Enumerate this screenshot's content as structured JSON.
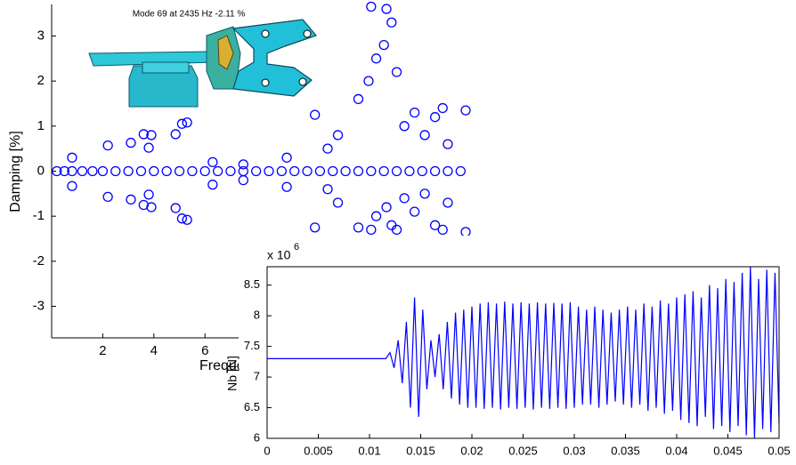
{
  "chart_data": [
    {
      "type": "scatter",
      "annotation": "Mode 69 at 2435 Hz -2.11 %",
      "x_label": "Frequency [kHz]",
      "y_label": "Damping [%]",
      "color": "#0000ff",
      "xlim": [
        0,
        17
      ],
      "ylim": [
        -3.7,
        3.7
      ],
      "xticks": [
        2,
        4,
        6
      ],
      "yticks": [
        -3,
        -2,
        -1,
        0,
        1,
        2,
        3
      ],
      "x": [
        0.2,
        0.5,
        0.8,
        1.2,
        1.6,
        2.0,
        2.5,
        3.0,
        3.5,
        4.0,
        4.5,
        5.0,
        5.5,
        6.0,
        6.5,
        7.0,
        7.5,
        8.0,
        8.5,
        9.0,
        9.5,
        10.0,
        10.5,
        11,
        11.5,
        12,
        12.5,
        13,
        13.5,
        14,
        14.5,
        15,
        15.5,
        16,
        0.8,
        0.8,
        2.2,
        2.2,
        3.1,
        3.1,
        3.6,
        3.6,
        3.8,
        3.8,
        3.9,
        3.9,
        4.85,
        4.85,
        5.1,
        5.1,
        5.3,
        5.3,
        6.3,
        6.3,
        7.5,
        7.5,
        9.2,
        9.2,
        10.3,
        10.3,
        10.8,
        10.8,
        11.2,
        11.2,
        12,
        12,
        12.5,
        12.5,
        12.7,
        12.7,
        13.1,
        13.1,
        13.3,
        13.3,
        13.5,
        13.5,
        13.8,
        13.8,
        14.2,
        14.2,
        14.6,
        14.6,
        15.0,
        15.0,
        15.3,
        15.3,
        15.5,
        15.5,
        16.2,
        16.2,
        12.4,
        13.0
      ],
      "values": [
        0,
        0,
        0,
        0,
        0,
        0,
        0,
        0,
        0,
        0,
        0,
        0,
        0,
        0,
        0,
        0,
        0,
        0,
        0,
        0,
        0,
        0,
        0,
        0,
        0,
        0,
        0,
        0,
        0,
        0,
        0,
        0,
        0,
        0,
        0.3,
        -0.33,
        0.57,
        -0.57,
        0.63,
        -0.63,
        0.82,
        -0.75,
        0.52,
        -0.52,
        0.8,
        -0.8,
        0.82,
        -0.82,
        1.05,
        -1.05,
        1.08,
        -1.08,
        0.2,
        -0.3,
        0.15,
        -0.2,
        0.3,
        -0.35,
        1.25,
        -1.25,
        0.5,
        -0.4,
        0.8,
        -0.7,
        1.6,
        -1.25,
        3.65,
        -1.3,
        2.5,
        -1.0,
        3.6,
        -0.8,
        3.3,
        -1.2,
        2.2,
        -1.3,
        1.0,
        -0.6,
        1.3,
        -0.9,
        0.8,
        -0.5,
        1.2,
        -1.2,
        1.4,
        -1.3,
        0.6,
        -0.7,
        1.35,
        -1.35,
        2.0,
        2.8
      ]
    },
    {
      "type": "line",
      "y_label": "Nb [N]",
      "y_multiplier": "x 10",
      "y_exponent": "6",
      "color": "#0000ff",
      "xlim": [
        0,
        0.05
      ],
      "ylim": [
        6,
        8.8
      ],
      "xticks": [
        0,
        0.005,
        0.01,
        0.015,
        0.02,
        0.025,
        0.03,
        0.035,
        0.04,
        0.045,
        0.05
      ],
      "yticks": [
        6,
        6.5,
        7,
        7.5,
        8,
        8.5
      ],
      "x": [
        0,
        0.0116,
        0.012,
        0.0124,
        0.0128,
        0.0132,
        0.0136,
        0.014,
        0.0144,
        0.0148,
        0.0152,
        0.0156,
        0.016,
        0.0164,
        0.0168,
        0.0172,
        0.0176,
        0.018,
        0.0184,
        0.0188,
        0.0192,
        0.0196,
        0.02,
        0.0204,
        0.0208,
        0.0212,
        0.0216,
        0.022,
        0.0224,
        0.0228,
        0.0232,
        0.0236,
        0.024,
        0.0244,
        0.0248,
        0.0252,
        0.0256,
        0.026,
        0.0264,
        0.0268,
        0.0272,
        0.0276,
        0.028,
        0.0284,
        0.0288,
        0.0292,
        0.0296,
        0.03,
        0.0304,
        0.0308,
        0.0312,
        0.0316,
        0.032,
        0.0324,
        0.0328,
        0.0332,
        0.0336,
        0.034,
        0.0344,
        0.0348,
        0.0352,
        0.0356,
        0.036,
        0.0364,
        0.0368,
        0.0372,
        0.0376,
        0.038,
        0.0384,
        0.0388,
        0.0392,
        0.0396,
        0.04,
        0.0404,
        0.0408,
        0.0412,
        0.0416,
        0.042,
        0.0424,
        0.0428,
        0.0432,
        0.0436,
        0.044,
        0.0444,
        0.0448,
        0.0452,
        0.0456,
        0.046,
        0.0464,
        0.0468,
        0.0472,
        0.0476,
        0.048,
        0.0484,
        0.0488,
        0.0492,
        0.0496,
        0.05
      ],
      "values": [
        7.3,
        7.3,
        7.4,
        7.15,
        7.6,
        6.9,
        7.9,
        6.5,
        8.3,
        6.35,
        8.1,
        6.8,
        7.6,
        7.0,
        7.7,
        6.8,
        7.9,
        6.65,
        8.05,
        6.55,
        8.1,
        6.5,
        8.15,
        6.5,
        8.2,
        6.48,
        8.22,
        6.5,
        8.2,
        6.47,
        8.23,
        6.5,
        8.2,
        6.48,
        8.22,
        6.5,
        8.2,
        6.47,
        8.22,
        6.5,
        8.2,
        6.48,
        8.21,
        6.5,
        8.2,
        6.48,
        8.22,
        6.5,
        8.15,
        6.55,
        8.1,
        6.55,
        8.15,
        6.5,
        8.1,
        6.55,
        8.05,
        6.6,
        8.1,
        6.55,
        8.15,
        6.5,
        8.1,
        6.55,
        8.2,
        6.45,
        8.15,
        6.5,
        8.25,
        6.4,
        8.2,
        6.45,
        8.3,
        6.3,
        8.35,
        6.25,
        8.4,
        6.2,
        8.3,
        6.35,
        8.5,
        6.15,
        8.45,
        6.2,
        8.6,
        6.1,
        8.55,
        6.2,
        8.7,
        6.05,
        8.8,
        6.0,
        8.6,
        6.15,
        8.75,
        6.1,
        8.7,
        6.25
      ]
    }
  ]
}
